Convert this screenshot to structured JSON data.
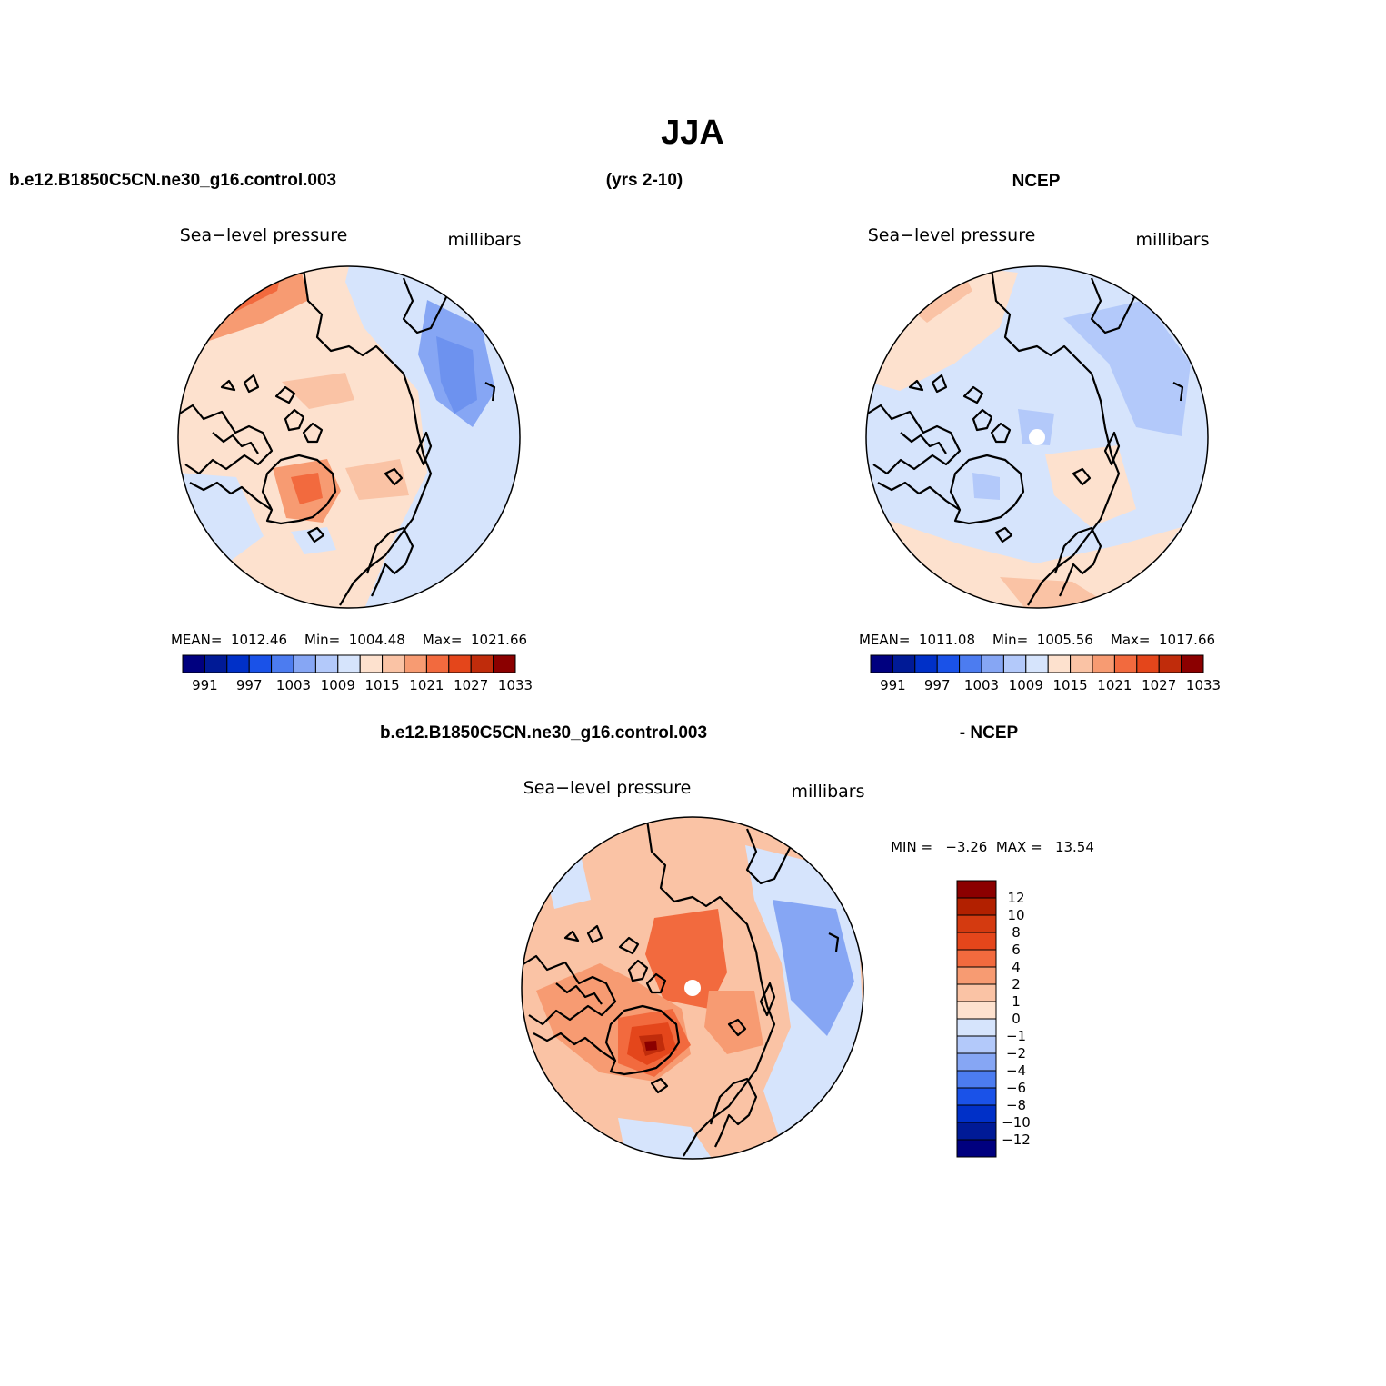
{
  "page": {
    "title": "JJA",
    "top_left_label": "b.e12.B1850C5CN.ne30_g16.control.003",
    "top_center_label": "(yrs 2-10)",
    "top_right_label": "NCEP",
    "bottom_left_label": "b.e12.B1850C5CN.ne30_g16.control.003",
    "bottom_right_label": "- NCEP"
  },
  "colors": {
    "ocean_bg": "#fde1ce",
    "blue_levels": [
      "#00007f",
      "#001a96",
      "#0030c8",
      "#1a52e8",
      "#4c7cf0",
      "#86a6f4",
      "#b3c9fa",
      "#d6e4fc"
    ],
    "red_levels": [
      "#fde1ce",
      "#fac3a5",
      "#f79b72",
      "#f26a3e",
      "#e4461b",
      "#c02c0b",
      "#8b0000"
    ]
  },
  "maps": [
    {
      "id": "model",
      "title": "Sea−level pressure",
      "units": "millibars",
      "mean_line": "MEAN=  1012.46    Min=  1004.48    Max=  1021.66",
      "colorbar_labels": [
        "991",
        "997",
        "1003",
        "1009",
        "1015",
        "1021",
        "1027",
        "1033"
      ],
      "colorbar_colors": [
        "#00007f",
        "#001a96",
        "#0030c8",
        "#1a52e8",
        "#4c7cf0",
        "#86a6f4",
        "#b3c9fa",
        "#d6e4fc",
        "#fde1ce",
        "#fac3a5",
        "#f79b72",
        "#f26a3e",
        "#e4461b",
        "#c02c0b",
        "#8b0000"
      ]
    },
    {
      "id": "ncep",
      "title": "Sea−level pressure",
      "units": "millibars",
      "mean_line": "MEAN=  1011.08    Min=  1005.56    Max=  1017.66",
      "colorbar_labels": [
        "991",
        "997",
        "1003",
        "1009",
        "1015",
        "1021",
        "1027",
        "1033"
      ],
      "colorbar_colors": [
        "#00007f",
        "#001a96",
        "#0030c8",
        "#1a52e8",
        "#4c7cf0",
        "#86a6f4",
        "#b3c9fa",
        "#d6e4fc",
        "#fde1ce",
        "#fac3a5",
        "#f79b72",
        "#f26a3e",
        "#e4461b",
        "#c02c0b",
        "#8b0000"
      ]
    },
    {
      "id": "diff",
      "title": "Sea−level pressure",
      "units": "millibars",
      "minmax_line": "MIN =   −3.26  MAX =   13.54",
      "colorbar_labels": [
        "12",
        "10",
        "8",
        "6",
        "4",
        "2",
        "1",
        "0",
        "−1",
        "−2",
        "−4",
        "−6",
        "−8",
        "−10",
        "−12"
      ],
      "colorbar_colors": [
        "#8b0000",
        "#b22000",
        "#d43a10",
        "#e4461b",
        "#f26a3e",
        "#f79b72",
        "#fac3a5",
        "#fde1ce",
        "#d6e4fc",
        "#b3c9fa",
        "#86a6f4",
        "#4c7cf0",
        "#1a52e8",
        "#0030c8",
        "#001a96",
        "#00007f"
      ]
    }
  ]
}
